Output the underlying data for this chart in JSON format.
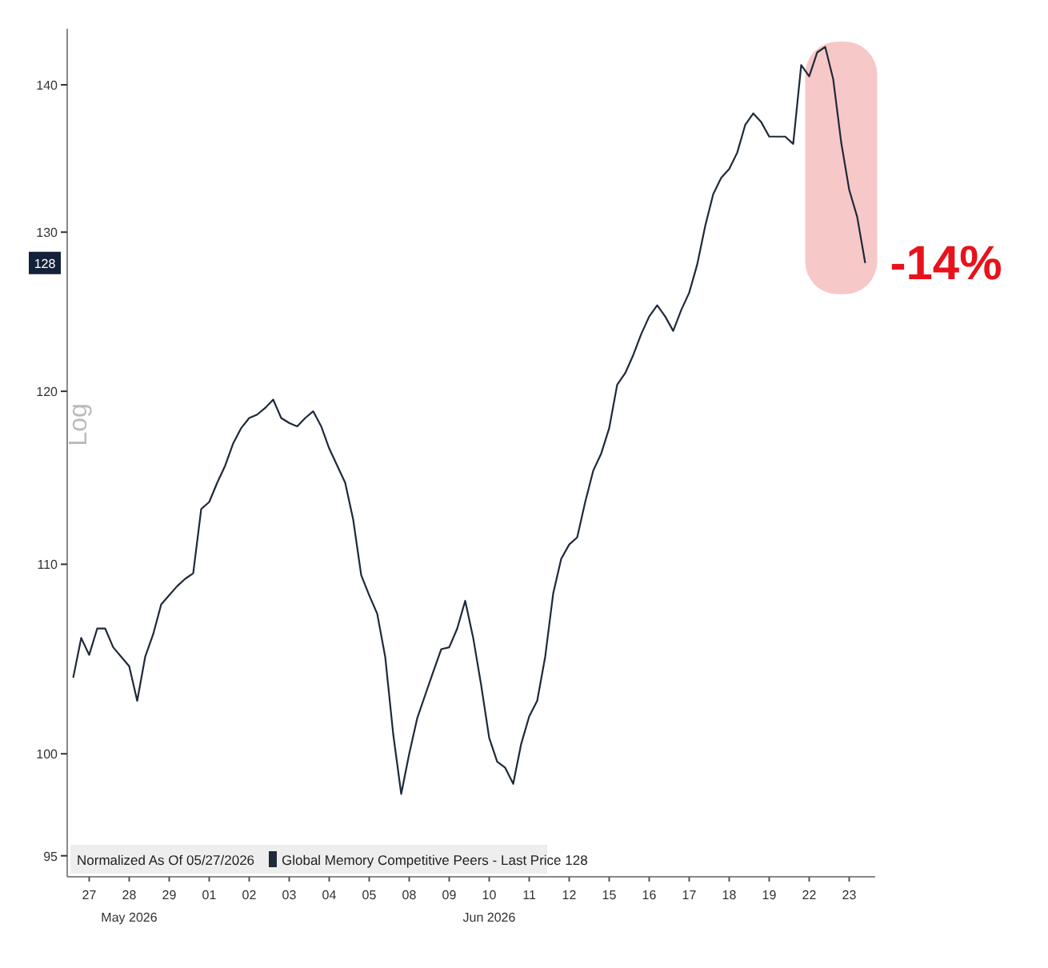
{
  "chart_data": {
    "type": "line",
    "ylabel": "Log",
    "legend_title": "Normalized As Of 05/27/2026",
    "log": "y",
    "grid": false,
    "legend": "bottom left",
    "marker": "none",
    "line_style": "solid",
    "ylim": [
      94,
      144
    ],
    "yticks": [
      95,
      100,
      110,
      120,
      130,
      140
    ],
    "categories": [
      null,
      null,
      "27",
      null,
      null,
      null,
      null,
      "28",
      null,
      null,
      null,
      null,
      "29",
      null,
      null,
      null,
      null,
      "01",
      null,
      null,
      null,
      null,
      "02",
      null,
      null,
      null,
      null,
      "03",
      null,
      null,
      null,
      null,
      "04",
      null,
      null,
      null,
      null,
      "05",
      null,
      null,
      null,
      null,
      "08",
      null,
      null,
      null,
      null,
      "09",
      null,
      null,
      null,
      null,
      "10",
      null,
      null,
      null,
      null,
      "11",
      null,
      null,
      null,
      null,
      "12",
      null,
      null,
      null,
      null,
      "15",
      null,
      null,
      null,
      null,
      "16",
      null,
      null,
      null,
      null,
      "17",
      null,
      null,
      null,
      null,
      "18",
      null,
      null,
      null,
      null,
      "19",
      null,
      null,
      null,
      null,
      "22",
      null,
      null,
      null,
      null,
      "23",
      null,
      null
    ],
    "series": [
      {
        "name": "Global Memory Competitive Peers - Last Price 128",
        "color": "#1f2a3a",
        "values": [
          103.9,
          106,
          105.1,
          106.5,
          106.5,
          105.5,
          105,
          104.5,
          102.7,
          105,
          106.2,
          107.8,
          108.3,
          108.8,
          109.2,
          109.5,
          113.1,
          113.5,
          114.6,
          115.6,
          116.9,
          117.8,
          118.4,
          118.6,
          119,
          119.5,
          118.4,
          118.1,
          117.9,
          118.4,
          118.8,
          117.9,
          116.6,
          115.6,
          114.6,
          112.5,
          109.4,
          108.3,
          107.3,
          105,
          101,
          98,
          100,
          101.8,
          103,
          104.2,
          105.4,
          105.5,
          106.5,
          108,
          106,
          103.5,
          100.8,
          99.6,
          99.3,
          98.5,
          100.5,
          101.9,
          102.7,
          105,
          108.4,
          110.3,
          111.1,
          111.5,
          113.5,
          115.3,
          116.3,
          117.8,
          120.4,
          121.1,
          122.2,
          123.5,
          124.6,
          125.3,
          124.6,
          123.7,
          125,
          126.1,
          127.9,
          130.4,
          132.5,
          133.6,
          134.2,
          135.3,
          137.2,
          138,
          137.4,
          136.4,
          136.4,
          136.4,
          135.9,
          141.4,
          140.6,
          142.3,
          142.7,
          140.4,
          136,
          132.8,
          131,
          128
        ]
      }
    ],
    "annotations": [
      "-14%",
      "128",
      "May 2026",
      "Jun 2026"
    ]
  }
}
